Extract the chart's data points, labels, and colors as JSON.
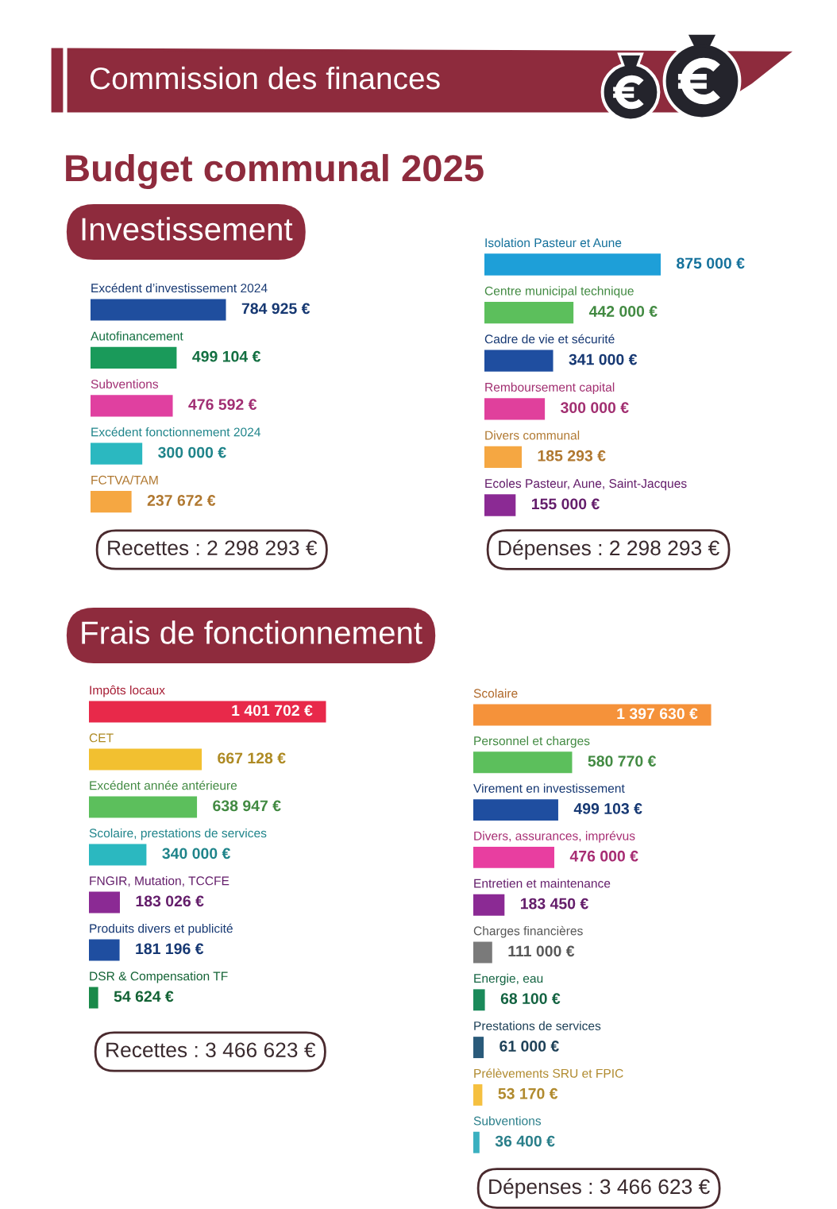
{
  "chart_data": [
    {
      "type": "other",
      "title": "Commission des finances",
      "subtitle": "Budget communal 2025"
    },
    {
      "type": "bar",
      "orientation": "horizontal",
      "title": "Investissement",
      "categories": [
        "Excédent d’investissement 2024",
        "Autofinancement",
        "Subventions",
        "Excédent fonctionnement 2024",
        "FCTVA/TAM"
      ],
      "values": [
        784925,
        499104,
        476592,
        300000,
        237672
      ],
      "colors": [
        "#1f4e9e",
        "#1a9a5a",
        "#e040a0",
        "#2bb8c0",
        "#f5a742"
      ],
      "value_labels": [
        "784 925 €",
        "499 104 €",
        "476 592 €",
        "300 000 €",
        "237 672 €"
      ],
      "annotations": [
        "Recettes : 2 298 293 €"
      ]
    },
    {
      "type": "bar",
      "orientation": "horizontal",
      "categories": [
        "Isolation Pasteur et Aune",
        "Centre municipal technique",
        "Cadre de vie et sécurité",
        "Remboursement capital",
        "Divers communal",
        "Ecoles Pasteur, Aune, Saint-Jacques"
      ],
      "values": [
        875000,
        442000,
        341000,
        300000,
        185293,
        155000
      ],
      "colors": [
        "#1e9fd8",
        "#5cbf5c",
        "#1f4ea0",
        "#e0409c",
        "#f5a742",
        "#8b2a94"
      ],
      "value_labels": [
        "875 000 €",
        "442 000 €",
        "341 000 €",
        "300 000 €",
        "185 293 €",
        "155 000 €"
      ],
      "annotations": [
        "Dépenses : 2 298 293 €"
      ]
    },
    {
      "type": "bar",
      "orientation": "horizontal",
      "title": "Frais de fonctionnement",
      "categories": [
        "Impôts locaux",
        "CET",
        "Excédent année antérieure",
        "Scolaire, prestations de services",
        "FNGIR, Mutation, TCCFE",
        "Produits divers et publicité",
        "DSR & Compensation TF"
      ],
      "values": [
        1401702,
        667128,
        638947,
        340000,
        183026,
        181196,
        54624
      ],
      "colors": [
        "#e8294a",
        "#f2c030",
        "#5cbf5c",
        "#2bb8c0",
        "#8b2a94",
        "#1f4ea0",
        "#1a8a4a"
      ],
      "value_labels": [
        "1 401 702 €",
        "667 128 €",
        "638 947 €",
        "340 000 €",
        "183 026 €",
        "181 196 €",
        "54 624 €"
      ],
      "annotations": [
        "Recettes : 3 466 623 €"
      ]
    },
    {
      "type": "bar",
      "orientation": "horizontal",
      "categories": [
        "Scolaire",
        "Personnel et charges",
        "Virement en investissement",
        "Divers, assurances, imprévus",
        "Entretien et maintenance",
        "Charges financières",
        "Energie, eau",
        "Prestations de services",
        "Prélèvements SRU et FPIC",
        "Subventions"
      ],
      "values": [
        1397630,
        580770,
        499103,
        476000,
        183450,
        111000,
        68100,
        61000,
        53170,
        36400
      ],
      "colors": [
        "#f5923a",
        "#5cbf5c",
        "#1f4ea0",
        "#e83ea0",
        "#8b2a94",
        "#7a7a7a",
        "#1a8a5a",
        "#2a5a7a",
        "#f5c040",
        "#3ab0c0"
      ],
      "value_labels": [
        "1 397 630 €",
        "580 770 €",
        "499 103 €",
        "476 000 €",
        "183 450 €",
        "111 000 €",
        "68 100 €",
        "61 000 €",
        "53 170 €",
        "36 400 €"
      ],
      "annotations": [
        "Dépenses : 3 466 623 €"
      ]
    }
  ]
}
